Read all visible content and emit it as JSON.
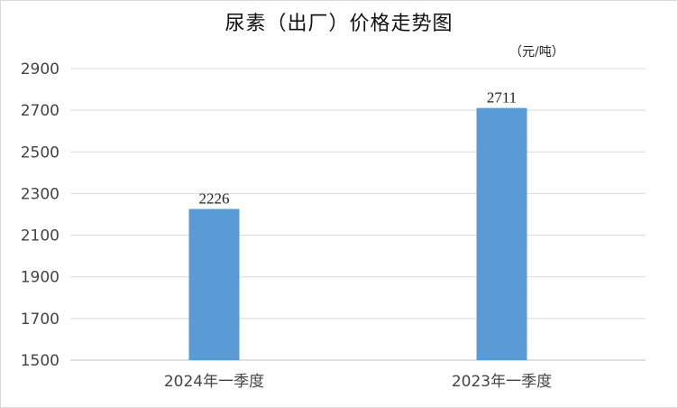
{
  "chart_data": {
    "type": "bar",
    "title": "尿素（出厂）价格走势图",
    "unit_label": "（元/吨）",
    "categories": [
      "2024年一季度",
      "2023年一季度"
    ],
    "series": [
      {
        "values": [
          2226,
          2711
        ],
        "color": "#5b9bd5"
      }
    ],
    "data_labels": [
      "2226",
      "2711"
    ],
    "ylim": [
      1500,
      2900
    ],
    "yticks": [
      1500,
      1700,
      1900,
      2100,
      2300,
      2500,
      2700,
      2900
    ],
    "grid": true,
    "legend": "none"
  }
}
